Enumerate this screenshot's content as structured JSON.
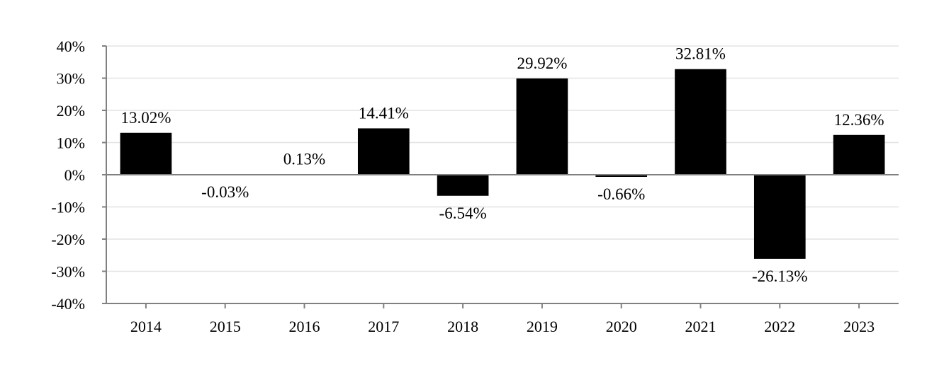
{
  "chart_data": {
    "type": "bar",
    "categories": [
      "2014",
      "2015",
      "2016",
      "2017",
      "2018",
      "2019",
      "2020",
      "2021",
      "2022",
      "2023"
    ],
    "values": [
      13.02,
      -0.03,
      0.13,
      14.41,
      -6.54,
      29.92,
      -0.66,
      32.81,
      -26.13,
      12.36
    ],
    "data_labels": [
      "13.02%",
      "-0.03%",
      "0.13%",
      "14.41%",
      "-6.54%",
      "29.92%",
      "-0.66%",
      "32.81%",
      "-26.13%",
      "12.36%"
    ],
    "y_ticks": [
      40,
      30,
      20,
      10,
      0,
      -10,
      -20,
      -30,
      -40
    ],
    "y_tick_labels": [
      "40%",
      "30%",
      "20%",
      "10%",
      "0%",
      "-10%",
      "-20%",
      "-30%",
      "-40%"
    ],
    "ylim": [
      -40,
      40
    ],
    "title": "",
    "xlabel": "",
    "ylabel": "",
    "grid": true,
    "bar_color": "#000000",
    "grid_color": "#e3e3e3",
    "axis_color": "#808080"
  }
}
